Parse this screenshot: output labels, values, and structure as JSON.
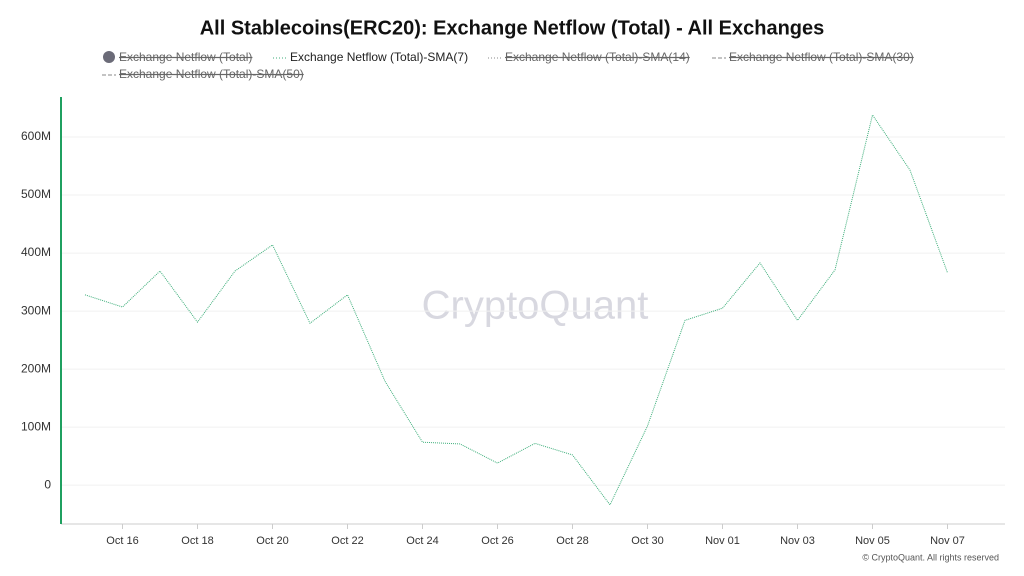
{
  "chart_data": {
    "type": "line",
    "title": "All Stablecoins(ERC20): Exchange Netflow (Total) - All Exchanges",
    "watermark": "CryptoQuant",
    "footer": "© CryptoQuant. All rights reserved",
    "categories": [
      null,
      "Oct 16",
      null,
      "Oct 18",
      null,
      "Oct 20",
      null,
      "Oct 22",
      null,
      "Oct 24",
      null,
      "Oct 26",
      null,
      "Oct 28",
      null,
      "Oct 30",
      null,
      "Nov 01",
      null,
      "Nov 03",
      null,
      "Nov 05",
      null,
      "Nov 07"
    ],
    "series": [
      {
        "name": "Exchange Netflow (Total)",
        "color": "#6b6b78",
        "visible": false,
        "marker": "circle"
      },
      {
        "name": "Exchange Netflow (Total)-SMA(7)",
        "color": "#3dae7a",
        "visible": true,
        "marker": "dotted",
        "values": [
          328,
          307,
          369,
          281,
          369,
          414,
          279,
          328,
          179,
          74,
          71,
          38,
          72,
          52,
          -34,
          102,
          284,
          305,
          383,
          284,
          371,
          638,
          543,
          366
        ]
      },
      {
        "name": "Exchange Netflow (Total)-SMA(14)",
        "color": "#888888",
        "visible": false,
        "marker": "dotted"
      },
      {
        "name": "Exchange Netflow (Total)-SMA(30)",
        "color": "#888888",
        "visible": false,
        "marker": "dashed"
      },
      {
        "name": "Exchange Netflow (Total)-SMA(50)",
        "color": "#888888",
        "visible": false,
        "marker": "dashed"
      }
    ],
    "ylim": [
      -67,
      669
    ],
    "yticks": [
      0,
      {
        "value": 100,
        "label": "100M"
      },
      {
        "value": 200,
        "label": "200M"
      },
      {
        "value": 300,
        "label": "300M"
      },
      {
        "value": 400,
        "label": "400M"
      },
      {
        "value": 500,
        "label": "500M"
      },
      {
        "value": 600,
        "label": "600M"
      }
    ],
    "grid": true
  }
}
